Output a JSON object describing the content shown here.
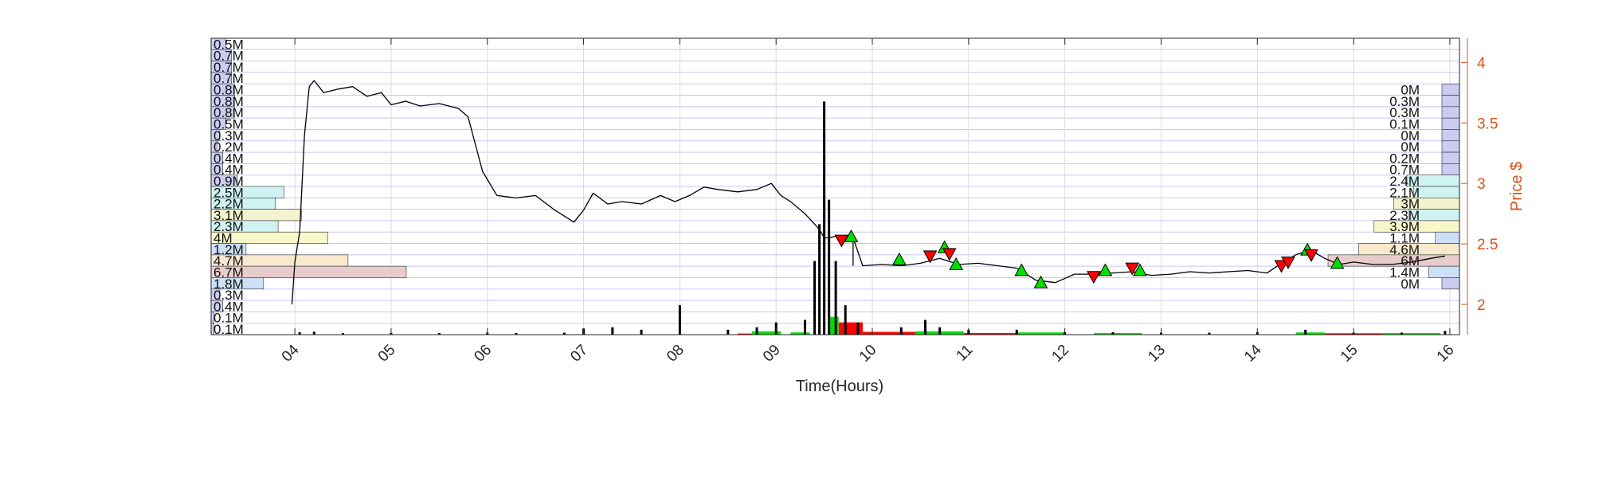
{
  "chart_data": {
    "type": "line",
    "xlabel": "Time(Hours)",
    "ylabel_right": "Price $",
    "x_ticks": [
      "04",
      "05",
      "06",
      "07",
      "08",
      "09",
      "10",
      "11",
      "12",
      "13",
      "14",
      "15",
      "16"
    ],
    "xlim": [
      3.13,
      16.1
    ],
    "y_right_ticks": [
      2,
      2.5,
      3,
      3.5,
      4
    ],
    "ylim_right": [
      1.75,
      4.2
    ],
    "grid": true,
    "price_series": {
      "name": "",
      "color": "#000000",
      "x": [
        3.97,
        4.0,
        4.05,
        4.1,
        4.15,
        4.2,
        4.3,
        4.45,
        4.6,
        4.75,
        4.9,
        5.0,
        5.15,
        5.3,
        5.5,
        5.7,
        5.8,
        5.85,
        5.95,
        6.1,
        6.3,
        6.5,
        6.7,
        6.9,
        7.0,
        7.1,
        7.25,
        7.4,
        7.6,
        7.8,
        7.95,
        8.1,
        8.25,
        8.4,
        8.6,
        8.8,
        8.95,
        9.05,
        9.15,
        9.3,
        9.45,
        9.5,
        9.55,
        9.65,
        9.72,
        9.8,
        9.9,
        10.1,
        10.3,
        10.5,
        10.7,
        10.9,
        11.1,
        11.3,
        11.5,
        11.7,
        11.9,
        12.1,
        12.3,
        12.5,
        12.7,
        12.9,
        13.1,
        13.3,
        13.5,
        13.7,
        13.9,
        14.1,
        14.25,
        14.4,
        14.55,
        14.7,
        14.85,
        15.0,
        15.2,
        15.4,
        15.6,
        15.8,
        15.95
      ],
      "y": [
        2.0,
        2.35,
        2.6,
        3.4,
        3.8,
        3.85,
        3.75,
        3.78,
        3.8,
        3.72,
        3.75,
        3.65,
        3.68,
        3.64,
        3.66,
        3.62,
        3.55,
        3.4,
        3.1,
        2.9,
        2.88,
        2.9,
        2.78,
        2.68,
        2.78,
        2.92,
        2.83,
        2.85,
        2.83,
        2.9,
        2.85,
        2.9,
        2.97,
        2.95,
        2.93,
        2.95,
        3.0,
        2.9,
        2.85,
        2.75,
        2.62,
        2.55,
        2.55,
        2.57,
        2.53,
        2.55,
        2.32,
        2.33,
        2.32,
        2.34,
        2.38,
        2.33,
        2.34,
        2.32,
        2.3,
        2.2,
        2.18,
        2.25,
        2.25,
        2.26,
        2.27,
        2.24,
        2.25,
        2.27,
        2.26,
        2.27,
        2.28,
        2.26,
        2.34,
        2.41,
        2.45,
        2.38,
        2.33,
        2.35,
        2.33,
        2.33,
        2.35,
        2.38,
        2.4
      ]
    },
    "buy_markers": {
      "name": "",
      "color": "#00e000",
      "x": [
        9.78,
        10.28,
        10.75,
        10.87,
        11.55,
        11.75,
        12.42,
        12.78,
        14.52,
        14.83
      ],
      "y": [
        2.56,
        2.37,
        2.47,
        2.33,
        2.28,
        2.18,
        2.28,
        2.28,
        2.45,
        2.34
      ]
    },
    "sell_markers": {
      "name": "",
      "color": "#ff0000",
      "x": [
        9.68,
        10.6,
        10.8,
        12.3,
        12.7,
        14.25,
        14.32,
        14.56
      ],
      "y": [
        2.53,
        2.4,
        2.42,
        2.23,
        2.3,
        2.32,
        2.35,
        2.41
      ]
    },
    "volume_bars": {
      "name": "",
      "unit": "M",
      "x": [
        4.05,
        4.2,
        4.5,
        5.0,
        5.5,
        6.0,
        6.3,
        6.8,
        7.0,
        7.3,
        7.6,
        8.0,
        8.5,
        8.8,
        9.0,
        9.3,
        9.4,
        9.45,
        9.5,
        9.55,
        9.62,
        9.72,
        9.85,
        10.3,
        10.55,
        10.7,
        11.0,
        11.5,
        12.0,
        12.5,
        13.0,
        13.5,
        14.0,
        14.5,
        15.0,
        15.5,
        15.95
      ],
      "values": [
        0.01,
        0.012,
        0.006,
        0.004,
        0.004,
        0.008,
        0.006,
        0.008,
        0.025,
        0.03,
        0.02,
        0.12,
        0.02,
        0.03,
        0.05,
        0.06,
        0.3,
        0.45,
        0.95,
        0.55,
        0.3,
        0.12,
        0.05,
        0.03,
        0.06,
        0.03,
        0.02,
        0.02,
        0.01,
        0.01,
        0.008,
        0.008,
        0.01,
        0.02,
        0.008,
        0.008,
        0.015
      ]
    },
    "green_volume_blocks": [
      {
        "x0": 8.75,
        "x1": 9.05,
        "value": 0.03
      },
      {
        "x0": 9.15,
        "x1": 9.35,
        "value": 0.02
      },
      {
        "x0": 9.55,
        "x1": 9.65,
        "value": 0.16
      },
      {
        "x0": 10.45,
        "x1": 10.95,
        "value": 0.03
      },
      {
        "x0": 11.5,
        "x1": 12.0,
        "value": 0.02
      },
      {
        "x0": 12.3,
        "x1": 12.8,
        "value": 0.015
      },
      {
        "x0": 14.4,
        "x1": 14.7,
        "value": 0.02
      },
      {
        "x0": 15.3,
        "x1": 15.9,
        "value": 0.015
      }
    ],
    "red_volume_blocks": [
      {
        "x0": 8.6,
        "x1": 8.75,
        "value": 0.01
      },
      {
        "x0": 9.65,
        "x1": 9.9,
        "value": 0.11
      },
      {
        "x0": 9.9,
        "x1": 10.45,
        "value": 0.025
      },
      {
        "x0": 10.95,
        "x1": 11.5,
        "value": 0.015
      },
      {
        "x0": 14.7,
        "x1": 15.3,
        "value": 0.012
      }
    ],
    "left_profile": {
      "labels": [
        "0.5M",
        "0.7M",
        "0.7M",
        "0.7M",
        "0.8M",
        "0.8M",
        "0.8M",
        "0.5M",
        "0.3M",
        "0.2M",
        "0.4M",
        "0.4M",
        "0.9M",
        "2.5M",
        "2.2M",
        "3.1M",
        "2.3M",
        "4M",
        "1.2M",
        "4.7M",
        "6.7M",
        "1.8M",
        "0.3M",
        "0.4M",
        "0.1M",
        "0.1M"
      ],
      "values": [
        0.5,
        0.7,
        0.7,
        0.7,
        0.8,
        0.8,
        0.8,
        0.5,
        0.3,
        0.2,
        0.4,
        0.4,
        0.9,
        2.5,
        2.2,
        3.1,
        2.3,
        4.0,
        1.2,
        4.7,
        6.7,
        1.8,
        0.3,
        0.4,
        0.1,
        0.1
      ],
      "colors": [
        "#ccccf2",
        "#ccccf2",
        "#ccccf2",
        "#ccccf2",
        "#ccccf2",
        "#ccccf2",
        "#ccccf2",
        "#ccccf2",
        "#ccccf2",
        "#ccccf2",
        "#ccccf2",
        "#ccccf2",
        "#ccccf2",
        "#cff3f3",
        "#cff3f3",
        "#f3f3cf",
        "#cff3f3",
        "#f7f7c9",
        "#cce0f5",
        "#f8e8cc",
        "#e8cccc",
        "#cce0f5",
        "#ccccf2",
        "#ccccf2",
        "#ccccf2",
        "#ccccf2"
      ]
    },
    "right_profile": {
      "labels": [
        "0M",
        "0.3M",
        "0.3M",
        "0.1M",
        "0M",
        "0M",
        "0.2M",
        "0.7M",
        "2.4M",
        "2.1M",
        "3M",
        "2.3M",
        "3.9M",
        "1.1M",
        "4.6M",
        "6M",
        "1.4M",
        "0M"
      ],
      "values": [
        0.0,
        0.3,
        0.3,
        0.1,
        0.0,
        0.0,
        0.2,
        0.7,
        2.4,
        2.1,
        3.0,
        2.3,
        3.9,
        1.1,
        4.6,
        6.0,
        1.4,
        0.0
      ],
      "colors": [
        "#ccccf2",
        "#ccccf2",
        "#ccccf2",
        "#ccccf2",
        "#ccccf2",
        "#ccccf2",
        "#ccccf2",
        "#ccccf2",
        "#cff3f3",
        "#cff3f3",
        "#f3f3cf",
        "#cff3f3",
        "#f7f7c9",
        "#cce0f5",
        "#f8e8cc",
        "#e8cccc",
        "#cce0f5",
        "#ccccf2"
      ]
    }
  }
}
